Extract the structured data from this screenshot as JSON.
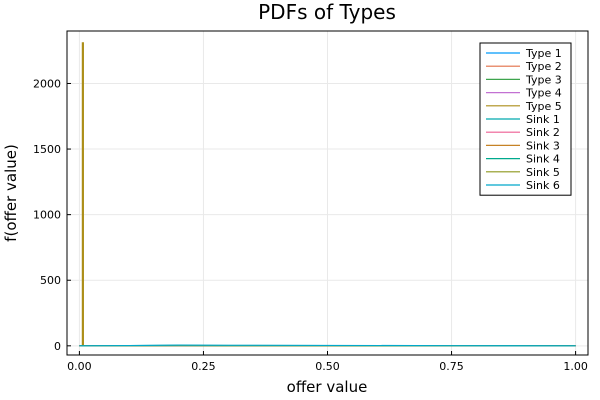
{
  "chart_data": {
    "type": "line",
    "title": "PDFs of Types",
    "xlabel": "offer value",
    "ylabel": "f(offer value)",
    "xlim": [
      -0.025,
      1.025
    ],
    "ylim": [
      -70,
      2400
    ],
    "xticks": [
      0.0,
      0.25,
      0.5,
      0.75,
      1.0
    ],
    "xtick_labels": [
      "0.00",
      "0.25",
      "0.50",
      "0.75",
      "1.00"
    ],
    "yticks": [
      0,
      500,
      1000,
      1500,
      2000
    ],
    "ytick_labels": [
      "0",
      "500",
      "1000",
      "1500",
      "2000"
    ],
    "grid": true,
    "legend_position": "top-right",
    "series": [
      {
        "name": "Type 1",
        "color": "#009af9",
        "x": [
          0.0,
          0.1,
          0.2,
          0.3,
          0.5,
          0.75,
          1.0
        ],
        "y": [
          0,
          1,
          2,
          1.5,
          1,
          0.5,
          0
        ]
      },
      {
        "name": "Type 2",
        "color": "#e26f46",
        "x": [
          0.0,
          0.1,
          0.2,
          0.3,
          0.5,
          0.75,
          1.0
        ],
        "y": [
          0,
          1,
          1.5,
          1,
          0.8,
          0.5,
          0
        ]
      },
      {
        "name": "Type 3",
        "color": "#3da44d",
        "x": [
          0.0,
          0.1,
          0.2,
          0.3,
          0.5,
          0.75,
          1.0
        ],
        "y": [
          0,
          1,
          2,
          1.5,
          1,
          0.5,
          0
        ]
      },
      {
        "name": "Type 4",
        "color": "#c271d2",
        "x": [
          0.0,
          0.1,
          0.2,
          0.3,
          0.5,
          0.75,
          1.0
        ],
        "y": [
          0,
          1,
          2,
          1.5,
          1,
          0.5,
          0
        ]
      },
      {
        "name": "Type 5",
        "color": "#ac8e18",
        "x": [
          0.0,
          0.006,
          0.006,
          0.008,
          0.008,
          0.2,
          0.5,
          1.0
        ],
        "y": [
          0,
          0,
          2310,
          2310,
          0,
          2,
          1,
          0
        ]
      },
      {
        "name": "Sink 1",
        "color": "#00a9ad",
        "x": [
          0.0,
          0.1,
          0.2,
          0.3,
          0.5,
          0.75,
          1.0
        ],
        "y": [
          0,
          2,
          4,
          3,
          2,
          1,
          0
        ]
      },
      {
        "name": "Sink 2",
        "color": "#ed5e93",
        "x": [
          0.0,
          0.1,
          0.2,
          0.3,
          0.5,
          0.75,
          1.0
        ],
        "y": [
          0,
          1,
          2,
          1.5,
          1,
          0.5,
          0
        ]
      },
      {
        "name": "Sink 3",
        "color": "#c68225",
        "x": [
          0.0,
          0.1,
          0.2,
          0.3,
          0.5,
          0.75,
          1.0
        ],
        "y": [
          0,
          1,
          2,
          1.5,
          1,
          0.5,
          0
        ]
      },
      {
        "name": "Sink 4",
        "color": "#00a98d",
        "x": [
          0.0,
          0.1,
          0.2,
          0.3,
          0.5,
          0.75,
          1.0
        ],
        "y": [
          0,
          1,
          2,
          1.5,
          1,
          0.5,
          0
        ]
      },
      {
        "name": "Sink 5",
        "color": "#8e971d",
        "x": [
          0.0,
          0.1,
          0.2,
          0.3,
          0.5,
          0.75,
          1.0
        ],
        "y": [
          0,
          1,
          2,
          1.5,
          1,
          0.5,
          0
        ]
      },
      {
        "name": "Sink 6",
        "color": "#00a8cb",
        "x": [
          0.0,
          0.1,
          0.2,
          0.3,
          0.5,
          0.75,
          1.0
        ],
        "y": [
          0,
          2,
          5,
          4,
          3,
          1,
          0
        ]
      }
    ]
  }
}
